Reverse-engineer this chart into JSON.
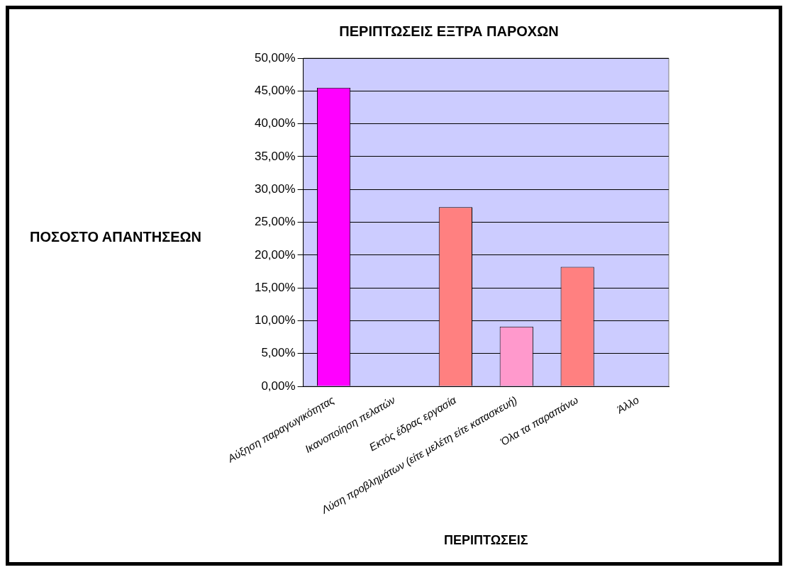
{
  "chart_data": {
    "type": "bar",
    "title": "ΠΕΡΙΠΤΩΣΕΙΣ ΕΞΤΡΑ ΠΑΡΟΧΩΝ",
    "xlabel": "ΠΕΡΙΠΤΩΣΕΙΣ",
    "ylabel": "ΠΟΣΟΣΤΟ ΑΠΑΝΤΗΣΕΩΝ",
    "categories": [
      "Αύξηση παραγωγικότητας",
      "Ικανοποίηση πελατών",
      "Εκτός έδρας εργασία",
      "Λύση προβλημάτων (είτε μελέτη είτε κατασκευή)",
      "Όλα τα παραπάνω",
      "Άλλο"
    ],
    "values": [
      45.5,
      0,
      27.3,
      9.1,
      18.2,
      0
    ],
    "colors": [
      "#ff00ff",
      "#c8a070",
      "#ff8080",
      "#ff99cc",
      "#ff8080",
      "#c8a070"
    ],
    "ylim": [
      0,
      50
    ],
    "yticks": [
      {
        "value": 0,
        "label": "0,00%"
      },
      {
        "value": 5,
        "label": "5,00%"
      },
      {
        "value": 10,
        "label": "10,00%"
      },
      {
        "value": 15,
        "label": "15,00%"
      },
      {
        "value": 20,
        "label": "20,00%"
      },
      {
        "value": 25,
        "label": "25,00%"
      },
      {
        "value": 30,
        "label": "30,00%"
      },
      {
        "value": 35,
        "label": "35,00%"
      },
      {
        "value": 40,
        "label": "40,00%"
      },
      {
        "value": 45,
        "label": "45,00%"
      },
      {
        "value": 50,
        "label": "50,00%"
      }
    ],
    "grid": "y",
    "legend": false
  }
}
